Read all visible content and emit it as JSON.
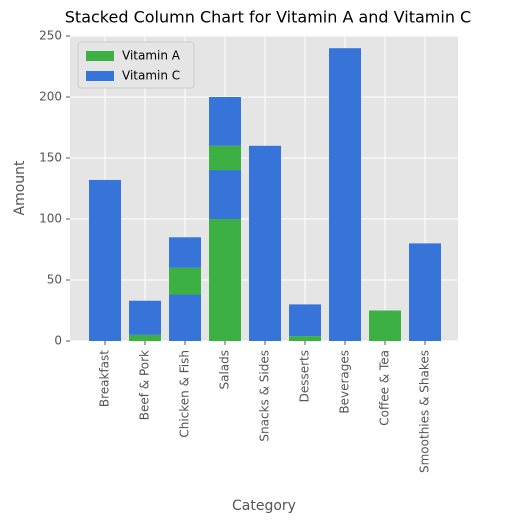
{
  "chart_data": {
    "type": "bar",
    "stacked": true,
    "title": "Stacked Column Chart for Vitamin A and Vitamin C",
    "xlabel": "Category",
    "ylabel": "Amount",
    "categories": [
      "Breakfast",
      "Beef & Pork",
      "Chicken & Fish",
      "Chicken & Fish",
      "Salads",
      "Salads",
      "Snacks & Sides",
      "Desserts",
      "Beverages",
      "Coffee & Tea",
      "Smoothies & Shakes"
    ],
    "series": [
      {
        "name": "Vitamin A",
        "color": "#3cb043",
        "values": [
          0,
          5,
          0,
          60,
          100,
          160,
          0,
          4,
          0,
          25,
          0
        ]
      },
      {
        "name": "Vitamin C",
        "color": "#3674d9",
        "values": [
          132,
          28,
          38,
          25,
          40,
          40,
          160,
          26,
          240,
          0,
          80
        ]
      }
    ],
    "ylim": [
      0,
      250
    ],
    "yticks": [
      0,
      50,
      100,
      150,
      200,
      250
    ],
    "grid": true,
    "legend": "upper left"
  }
}
